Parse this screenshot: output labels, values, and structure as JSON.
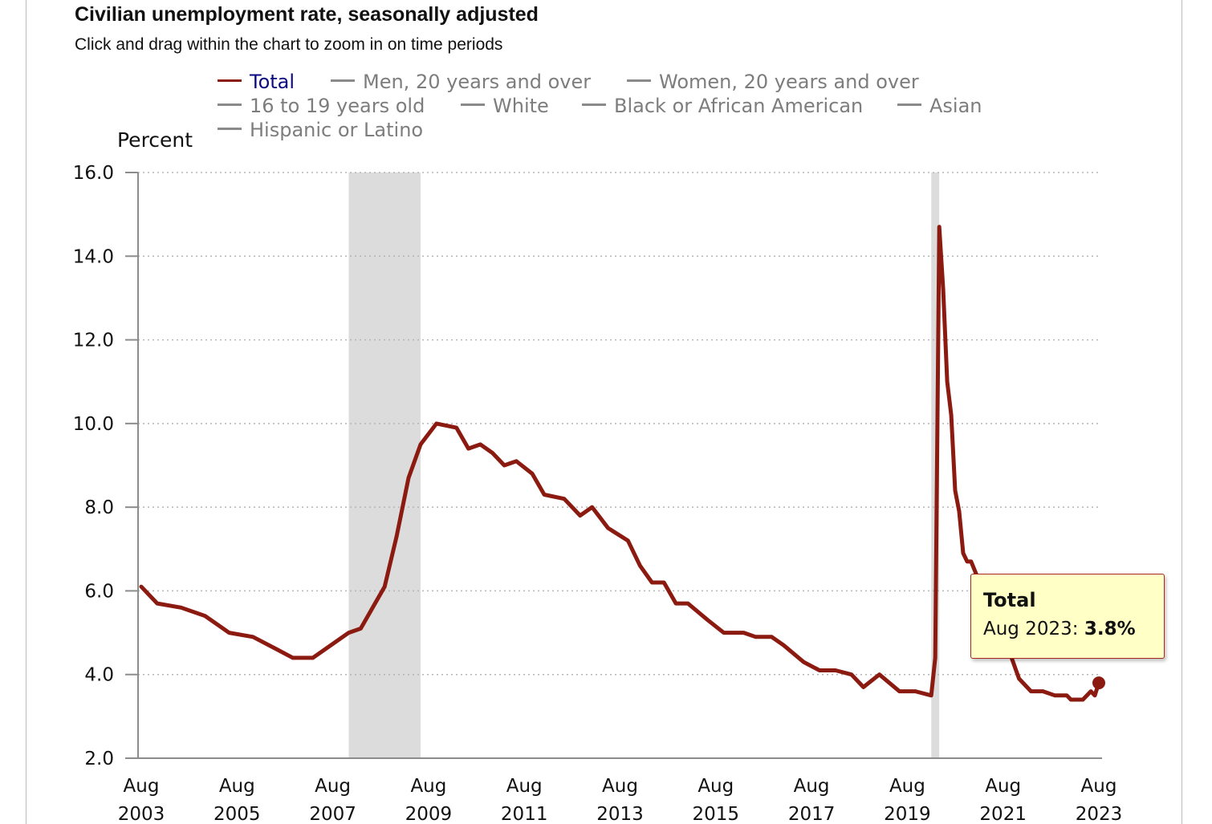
{
  "title": "Civilian unemployment rate, seasonally adjusted",
  "subtitle": "Click and drag within the chart to zoom in on time periods",
  "legend": [
    {
      "label": "Total",
      "active": true
    },
    {
      "label": "Men, 20 years and over",
      "active": false
    },
    {
      "label": "Women, 20 years and over",
      "active": false
    },
    {
      "label": "16 to 19 years old",
      "active": false
    },
    {
      "label": "White",
      "active": false
    },
    {
      "label": "Black or African American",
      "active": false
    },
    {
      "label": "Asian",
      "active": false
    },
    {
      "label": "Hispanic or Latino",
      "active": false
    }
  ],
  "tooltip": {
    "series": "Total",
    "period": "Aug 2023",
    "value": "3.8%"
  },
  "colors": {
    "series": "#8b1a10",
    "recession": "#dcdcdc",
    "tooltip_bg": "#ffffc6",
    "legend_inactive": "#7d7d7d",
    "legend_active": "#0a0a80"
  },
  "chart_data": {
    "type": "line",
    "title": "Civilian unemployment rate, seasonally adjusted",
    "ylabel": "Percent",
    "xlabel": "",
    "ylim": [
      2.0,
      16.0
    ],
    "yticks": [
      "16.0",
      "14.0",
      "12.0",
      "10.0",
      "8.0",
      "6.0",
      "4.0",
      "2.0"
    ],
    "xticks": [
      {
        "month": "Aug",
        "year": "2003"
      },
      {
        "month": "Aug",
        "year": "2005"
      },
      {
        "month": "Aug",
        "year": "2007"
      },
      {
        "month": "Aug",
        "year": "2009"
      },
      {
        "month": "Aug",
        "year": "2011"
      },
      {
        "month": "Aug",
        "year": "2013"
      },
      {
        "month": "Aug",
        "year": "2015"
      },
      {
        "month": "Aug",
        "year": "2017"
      },
      {
        "month": "Aug",
        "year": "2019"
      },
      {
        "month": "Aug",
        "year": "2021"
      },
      {
        "month": "Aug",
        "year": "2023"
      }
    ],
    "x_start": "2003-08",
    "grid": true,
    "recessions": [
      [
        "2007-12",
        "2009-06"
      ],
      [
        "2020-02",
        "2020-04"
      ]
    ],
    "series": [
      {
        "name": "Total",
        "highlight_last": true,
        "points": [
          [
            "2003-08",
            6.1
          ],
          [
            "2003-12",
            5.7
          ],
          [
            "2004-06",
            5.6
          ],
          [
            "2004-12",
            5.4
          ],
          [
            "2005-06",
            5.0
          ],
          [
            "2005-12",
            4.9
          ],
          [
            "2006-06",
            4.6
          ],
          [
            "2006-10",
            4.4
          ],
          [
            "2007-03",
            4.4
          ],
          [
            "2007-06",
            4.6
          ],
          [
            "2007-12",
            5.0
          ],
          [
            "2008-03",
            5.1
          ],
          [
            "2008-06",
            5.6
          ],
          [
            "2008-09",
            6.1
          ],
          [
            "2008-12",
            7.3
          ],
          [
            "2009-03",
            8.7
          ],
          [
            "2009-06",
            9.5
          ],
          [
            "2009-10",
            10.0
          ],
          [
            "2010-03",
            9.9
          ],
          [
            "2010-06",
            9.4
          ],
          [
            "2010-09",
            9.5
          ],
          [
            "2010-12",
            9.3
          ],
          [
            "2011-03",
            9.0
          ],
          [
            "2011-06",
            9.1
          ],
          [
            "2011-10",
            8.8
          ],
          [
            "2012-01",
            8.3
          ],
          [
            "2012-06",
            8.2
          ],
          [
            "2012-10",
            7.8
          ],
          [
            "2013-01",
            8.0
          ],
          [
            "2013-05",
            7.5
          ],
          [
            "2013-10",
            7.2
          ],
          [
            "2014-01",
            6.6
          ],
          [
            "2014-04",
            6.2
          ],
          [
            "2014-07",
            6.2
          ],
          [
            "2014-10",
            5.7
          ],
          [
            "2015-01",
            5.7
          ],
          [
            "2015-06",
            5.3
          ],
          [
            "2015-10",
            5.0
          ],
          [
            "2016-03",
            5.0
          ],
          [
            "2016-06",
            4.9
          ],
          [
            "2016-10",
            4.9
          ],
          [
            "2017-01",
            4.7
          ],
          [
            "2017-06",
            4.3
          ],
          [
            "2017-10",
            4.1
          ],
          [
            "2018-02",
            4.1
          ],
          [
            "2018-06",
            4.0
          ],
          [
            "2018-09",
            3.7
          ],
          [
            "2019-01",
            4.0
          ],
          [
            "2019-06",
            3.6
          ],
          [
            "2019-10",
            3.6
          ],
          [
            "2020-02",
            3.5
          ],
          [
            "2020-03",
            4.4
          ],
          [
            "2020-04",
            14.7
          ],
          [
            "2020-05",
            13.2
          ],
          [
            "2020-06",
            11.0
          ],
          [
            "2020-07",
            10.2
          ],
          [
            "2020-08",
            8.4
          ],
          [
            "2020-09",
            7.9
          ],
          [
            "2020-10",
            6.9
          ],
          [
            "2020-11",
            6.7
          ],
          [
            "2020-12",
            6.7
          ],
          [
            "2021-03",
            6.0
          ],
          [
            "2021-06",
            5.9
          ],
          [
            "2021-09",
            4.7
          ],
          [
            "2021-12",
            3.9
          ],
          [
            "2022-03",
            3.6
          ],
          [
            "2022-06",
            3.6
          ],
          [
            "2022-09",
            3.5
          ],
          [
            "2022-12",
            3.5
          ],
          [
            "2023-01",
            3.4
          ],
          [
            "2023-04",
            3.4
          ],
          [
            "2023-06",
            3.6
          ],
          [
            "2023-07",
            3.5
          ],
          [
            "2023-08",
            3.8
          ]
        ]
      }
    ]
  }
}
